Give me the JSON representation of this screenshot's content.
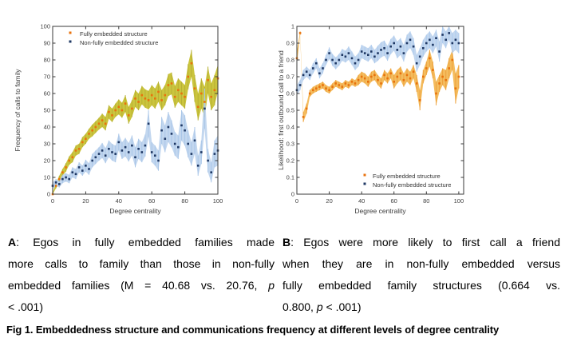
{
  "figure": {
    "captions": {
      "a": {
        "l1_bold": "A",
        "l1_text": ": Egos in fully embedded families made",
        "l2_text": "more calls to family than those in non-fully",
        "l3_text": "embedded families (M = 40.68 vs. 20.76, ",
        "l3_italic": "p",
        "l4_text": "< .001)"
      },
      "b": {
        "l1_bold": "B",
        "l1_text": ": Egos were more likely to first call a friend",
        "l2_text": "when they are in non-fully embedded versus",
        "l3_text": "fully embedded family structures (0.664 vs.",
        "l4_text1": "0.800, ",
        "l4_italic": "p",
        "l4_text2": " < .001)"
      },
      "fig": "Fig 1. Embeddedness structure and communications frequency at different levels of degree centrality"
    }
  },
  "chart_data": [
    {
      "id": "A",
      "type": "scatter",
      "title": "",
      "xlabel": "Degree centrality",
      "ylabel": "Frequency of calls to family",
      "xlim": [
        0,
        100
      ],
      "ylim": [
        0,
        100
      ],
      "grid": false,
      "legend_position": "top-left",
      "xticks": [
        0,
        20,
        40,
        60,
        80,
        100
      ],
      "xticklabels": [
        "0",
        "20",
        "40",
        "60",
        "80",
        "100"
      ],
      "yticks": [
        0,
        10,
        20,
        30,
        40,
        50,
        60,
        70,
        80,
        90,
        100
      ],
      "yticklabels": [
        "0",
        "10",
        "20",
        "30",
        "40",
        "50",
        "60",
        "70",
        "80",
        "90",
        "100"
      ],
      "x": [
        0,
        2,
        4,
        6,
        8,
        10,
        12,
        14,
        16,
        18,
        20,
        22,
        24,
        26,
        28,
        30,
        32,
        34,
        36,
        38,
        40,
        42,
        44,
        46,
        48,
        50,
        52,
        54,
        56,
        58,
        60,
        62,
        64,
        66,
        68,
        70,
        72,
        74,
        76,
        78,
        80,
        82,
        84,
        86,
        88,
        90,
        92,
        94,
        96,
        98,
        100
      ],
      "series": [
        {
          "name": "Fully embedded structure",
          "marker_color": "#e8720d",
          "band_color": "#cbc53e",
          "bar_color": "#b7b135",
          "values": [
            0,
            5,
            9,
            13,
            16,
            20,
            22,
            26,
            27,
            31,
            33,
            36,
            38,
            40,
            42,
            44,
            42,
            49,
            47,
            50,
            52,
            50,
            54,
            47,
            51,
            57,
            55,
            59,
            57,
            56,
            59,
            57,
            61,
            56,
            59,
            65,
            66,
            58,
            62,
            60,
            58,
            70,
            78,
            63,
            52,
            60,
            55,
            68,
            58,
            62,
            69
          ],
          "ci": [
            1,
            1.5,
            2,
            2,
            2.5,
            2.5,
            3,
            3,
            3,
            3,
            3,
            3,
            3.5,
            3.5,
            3.5,
            4,
            4,
            4,
            4,
            4,
            4.5,
            4.5,
            5,
            5,
            5,
            5,
            5,
            5.5,
            5.5,
            5.5,
            6,
            6,
            6,
            6,
            6,
            6.5,
            6.5,
            6.5,
            7,
            7,
            7,
            7.5,
            8,
            8,
            8,
            9,
            9,
            8,
            8,
            9,
            8
          ]
        },
        {
          "name": "Non-fully embedded structure",
          "marker_color": "#1f3864",
          "band_color": "#c3d7ef",
          "bar_color": "#a9c6e8",
          "values": [
            5,
            7,
            6,
            9,
            10,
            9,
            13,
            12,
            16,
            14,
            17,
            15,
            20,
            22,
            24,
            26,
            23,
            27,
            25,
            24,
            31,
            26,
            28,
            25,
            29,
            22,
            27,
            25,
            29,
            42,
            25,
            23,
            20,
            38,
            33,
            40,
            36,
            30,
            28,
            41,
            38,
            30,
            24,
            32,
            17,
            25,
            51,
            20,
            13,
            24,
            26
          ],
          "ci": [
            2,
            2,
            2,
            2.5,
            2.5,
            2.5,
            3,
            3,
            3,
            3,
            3.5,
            3.5,
            4,
            4,
            4,
            4.5,
            4.5,
            5,
            5,
            5,
            5,
            5,
            5.5,
            5.5,
            6,
            6,
            6,
            6,
            6.5,
            8,
            6,
            6,
            6,
            8,
            8,
            9,
            8,
            7,
            7,
            9,
            9,
            8,
            7,
            8,
            6,
            7,
            12,
            7,
            6,
            8,
            9
          ]
        }
      ]
    },
    {
      "id": "B",
      "type": "scatter",
      "title": "",
      "xlabel": "Degree centrality",
      "ylabel": "Likelihood: first outbound call to a friend",
      "xlim": [
        0,
        103
      ],
      "ylim": [
        0,
        1
      ],
      "grid": false,
      "legend_position": "bottom-right",
      "xticks": [
        0,
        20,
        40,
        60,
        80,
        100
      ],
      "xticklabels": [
        "0",
        "20",
        "40",
        "60",
        "80",
        "100"
      ],
      "yticks": [
        0,
        0.1,
        0.2,
        0.3,
        0.4,
        0.5,
        0.6,
        0.7,
        0.8,
        0.9,
        1
      ],
      "yticklabels": [
        "0",
        "0.1",
        "0.2",
        "0.3",
        "0.4",
        "0.5",
        "0.6",
        "0.7",
        "0.8",
        "0.9",
        "1"
      ],
      "x": [
        0,
        2,
        4,
        6,
        8,
        10,
        12,
        14,
        16,
        18,
        20,
        22,
        24,
        26,
        28,
        30,
        32,
        34,
        36,
        38,
        40,
        42,
        44,
        46,
        48,
        50,
        52,
        54,
        56,
        58,
        60,
        62,
        64,
        66,
        68,
        70,
        72,
        74,
        76,
        78,
        80,
        82,
        84,
        86,
        88,
        90,
        92,
        94,
        96,
        98,
        100
      ],
      "series": [
        {
          "name": "Fully embedded structure",
          "marker_color": "#e8720d",
          "band_color": "#f4bc5e",
          "bar_color": "#eda13d",
          "values": [
            0.81,
            0.96,
            0.46,
            0.51,
            0.6,
            0.62,
            0.63,
            0.64,
            0.65,
            0.63,
            0.62,
            0.64,
            0.66,
            0.65,
            0.64,
            0.66,
            0.65,
            0.67,
            0.66,
            0.68,
            0.7,
            0.69,
            0.67,
            0.7,
            0.71,
            0.68,
            0.66,
            0.71,
            0.69,
            0.72,
            0.67,
            0.7,
            0.72,
            0.68,
            0.71,
            0.69,
            0.73,
            0.66,
            0.56,
            0.7,
            0.75,
            0.81,
            0.74,
            0.6,
            0.66,
            0.7,
            0.68,
            0.75,
            0.8,
            0.63,
            0.7
          ],
          "ci": [
            0.04,
            0.01,
            0.03,
            0.03,
            0.02,
            0.02,
            0.02,
            0.02,
            0.02,
            0.02,
            0.02,
            0.02,
            0.02,
            0.02,
            0.02,
            0.02,
            0.02,
            0.02,
            0.02,
            0.03,
            0.03,
            0.03,
            0.03,
            0.03,
            0.03,
            0.03,
            0.03,
            0.03,
            0.03,
            0.03,
            0.04,
            0.04,
            0.04,
            0.04,
            0.04,
            0.04,
            0.04,
            0.05,
            0.06,
            0.04,
            0.04,
            0.05,
            0.05,
            0.07,
            0.05,
            0.05,
            0.06,
            0.06,
            0.06,
            0.09,
            0.07
          ]
        },
        {
          "name": "Non-fully embedded structure",
          "marker_color": "#1f3864",
          "band_color": "#c3d7ef",
          "bar_color": "#aecbee",
          "values": [
            0.62,
            0.65,
            0.71,
            0.73,
            0.71,
            0.75,
            0.78,
            0.72,
            0.75,
            0.8,
            0.84,
            0.8,
            0.78,
            0.8,
            0.83,
            0.82,
            0.84,
            0.81,
            0.78,
            0.8,
            0.85,
            0.84,
            0.83,
            0.85,
            0.82,
            0.84,
            0.86,
            0.87,
            0.84,
            0.88,
            0.9,
            0.86,
            0.88,
            0.84,
            0.9,
            0.92,
            0.88,
            0.78,
            0.82,
            0.87,
            0.9,
            0.92,
            0.89,
            0.93,
            0.85,
            0.95,
            0.92,
            0.96,
            0.9,
            0.92,
            0.9
          ],
          "ci": [
            0.03,
            0.03,
            0.03,
            0.03,
            0.03,
            0.03,
            0.03,
            0.03,
            0.03,
            0.03,
            0.035,
            0.035,
            0.035,
            0.035,
            0.035,
            0.035,
            0.04,
            0.04,
            0.04,
            0.04,
            0.04,
            0.04,
            0.04,
            0.04,
            0.04,
            0.045,
            0.045,
            0.045,
            0.045,
            0.045,
            0.045,
            0.05,
            0.05,
            0.05,
            0.05,
            0.05,
            0.05,
            0.05,
            0.05,
            0.05,
            0.05,
            0.05,
            0.05,
            0.05,
            0.06,
            0.05,
            0.05,
            0.04,
            0.06,
            0.06,
            0.06
          ]
        }
      ]
    }
  ]
}
